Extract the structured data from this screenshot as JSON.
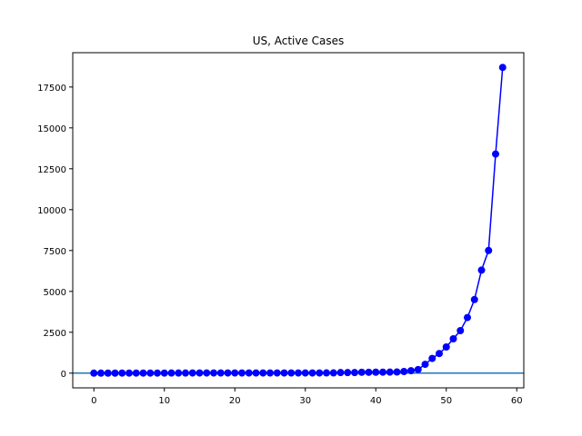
{
  "chart_data": {
    "type": "line",
    "title": "US, Active Cases",
    "xlabel": "",
    "ylabel": "",
    "xlim": [
      -3,
      61
    ],
    "ylim": [
      -900,
      19600
    ],
    "xticks": [
      0,
      10,
      20,
      30,
      40,
      50,
      60
    ],
    "yticks": [
      0,
      2500,
      5000,
      7500,
      10000,
      12500,
      15000,
      17500
    ],
    "grid": false,
    "series": [
      {
        "color": "#0000ff",
        "marker": "circle",
        "x": [
          0,
          1,
          2,
          3,
          4,
          5,
          6,
          7,
          8,
          9,
          10,
          11,
          12,
          13,
          14,
          15,
          16,
          17,
          18,
          19,
          20,
          21,
          22,
          23,
          24,
          25,
          26,
          27,
          28,
          29,
          30,
          31,
          32,
          33,
          34,
          35,
          36,
          37,
          38,
          39,
          40,
          41,
          42,
          43,
          44,
          45,
          46,
          47,
          48,
          49,
          50,
          51,
          52,
          53,
          54,
          55,
          56,
          57,
          58
        ],
        "y": [
          1,
          1,
          2,
          2,
          5,
          5,
          5,
          5,
          5,
          6,
          6,
          8,
          8,
          8,
          11,
          11,
          11,
          12,
          12,
          12,
          12,
          12,
          12,
          12,
          12,
          13,
          13,
          13,
          13,
          13,
          13,
          13,
          13,
          15,
          15,
          35,
          35,
          35,
          53,
          53,
          59,
          60,
          62,
          70,
          100,
          150,
          220,
          540,
          900,
          1200,
          1600,
          2100,
          2600,
          3400,
          4500,
          6300,
          7500,
          13400,
          18700
        ]
      }
    ],
    "hline": {
      "y": 0,
      "color": "#1f77b4"
    }
  }
}
